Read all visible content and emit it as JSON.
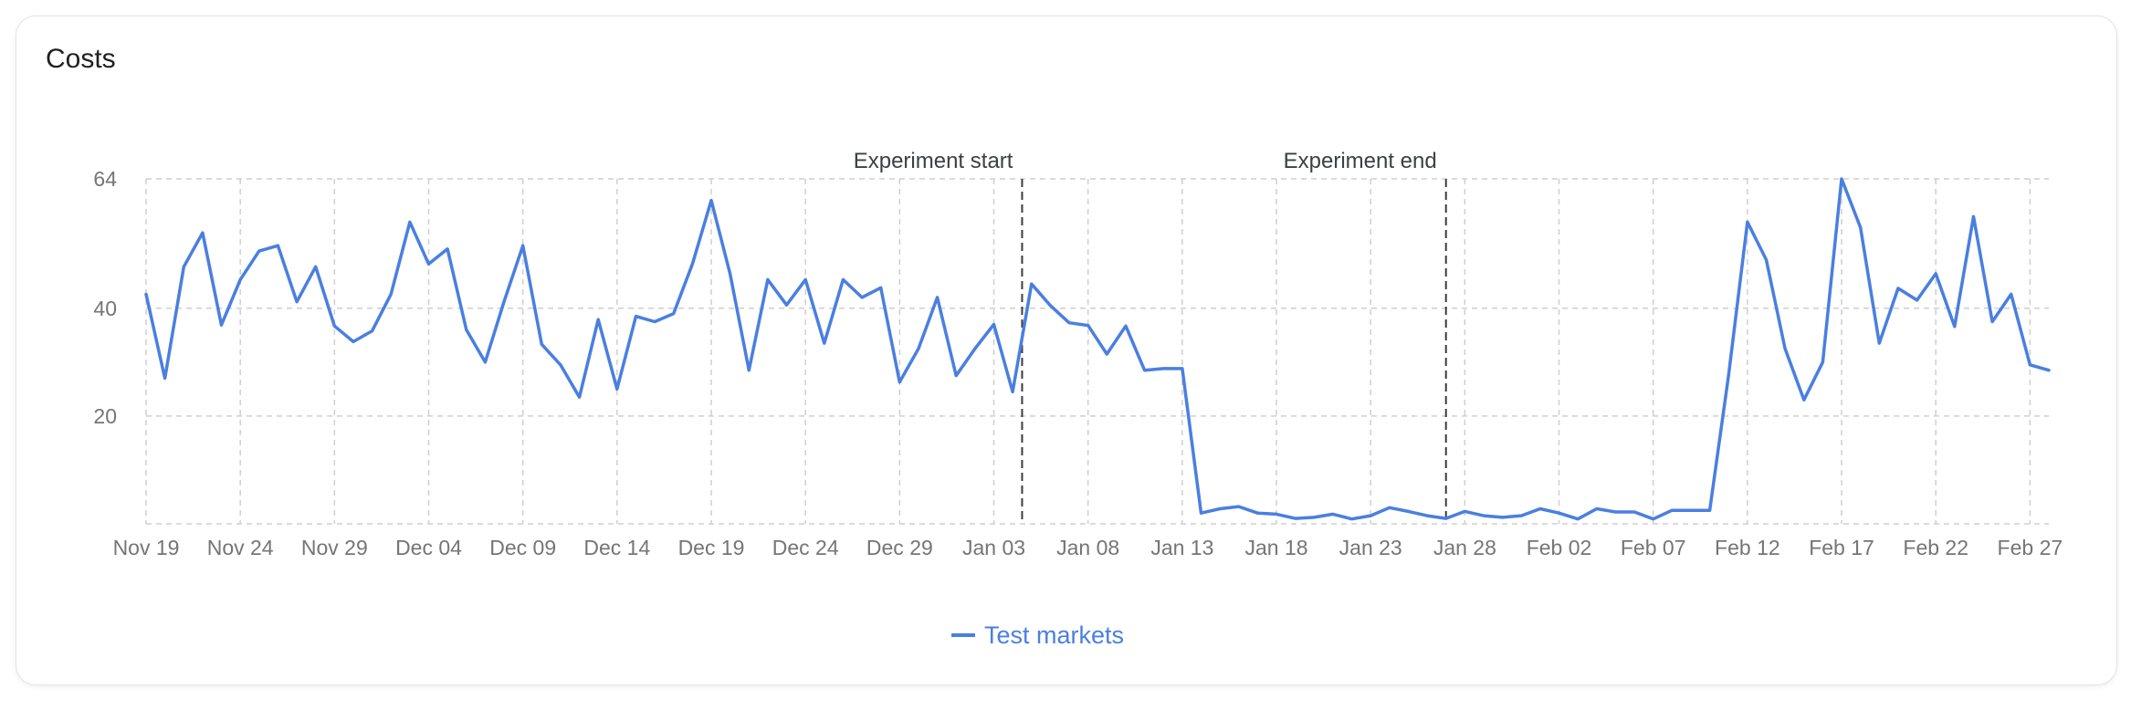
{
  "card": {
    "title": "Costs"
  },
  "colors": {
    "series": "#4a7fe0",
    "grid": "#cfcfcf",
    "marker": "#3c3c3c",
    "tick_text": "#757575"
  },
  "chart_data": {
    "type": "line",
    "title": "Costs",
    "xlabel": "",
    "ylabel": "",
    "x_range": [
      "Nov 19",
      "Feb 27"
    ],
    "ylim": [
      0,
      64
    ],
    "y_ticks": [
      20,
      40,
      64
    ],
    "x_tick_labels": [
      "Nov 19",
      "Nov 24",
      "Nov 29",
      "Dec 04",
      "Dec 09",
      "Dec 14",
      "Dec 19",
      "Dec 24",
      "Dec 29",
      "Jan 03",
      "Jan 08",
      "Jan 13",
      "Jan 18",
      "Jan 23",
      "Jan 28",
      "Feb 02",
      "Feb 07",
      "Feb 12",
      "Feb 17",
      "Feb 22",
      "Feb 27"
    ],
    "grid": true,
    "legend_position": "bottom-center",
    "annotations": [
      {
        "label": "Experiment start",
        "at_day": 46.5
      },
      {
        "label": "Experiment end",
        "at_day": 69
      }
    ],
    "series": [
      {
        "name": "Test markets",
        "values": [
          42.6,
          27,
          47.7,
          54,
          36.9,
          45.3,
          50.6,
          51.6,
          41.2,
          47.7,
          36.7,
          33.8,
          35.8,
          42.6,
          56,
          48.2,
          51,
          36,
          30,
          41.2,
          51.6,
          33.3,
          29.5,
          23.5,
          37.9,
          25,
          38.5,
          37.5,
          39,
          48.2,
          60,
          46.4,
          28.5,
          45.3,
          40.6,
          45.3,
          33.5,
          45.3,
          42,
          43.8,
          26.3,
          32.5,
          42,
          27.5,
          32.5,
          37,
          24.5,
          44.5,
          40.5,
          37.3,
          36.8,
          31.5,
          36.7,
          28.5,
          28.8,
          28.8,
          2,
          2.8,
          3.2,
          2,
          1.8,
          1,
          1.2,
          1.8,
          0.9,
          1.5,
          3,
          2.3,
          1.5,
          1,
          2.3,
          1.5,
          1.2,
          1.5,
          2.8,
          2,
          0.9,
          2.8,
          2.2,
          2.2,
          0.9,
          2.5,
          2.5,
          2.5,
          27.5,
          56,
          49,
          32.5,
          23,
          30,
          64,
          55,
          33.5,
          43.7,
          41.5,
          46.4,
          36.6,
          57,
          37.5,
          42.6,
          29.5,
          28.5
        ]
      }
    ]
  }
}
